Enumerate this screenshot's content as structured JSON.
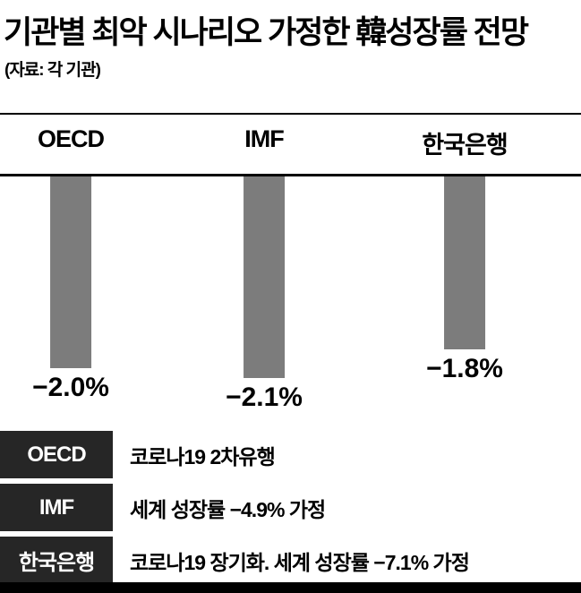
{
  "header": {
    "title": "기관별 최악 시나리오 가정한 韓성장률 전망",
    "source": "(자료: 각 기관)"
  },
  "chart_data": {
    "type": "bar",
    "title": "기관별 최악 시나리오 가정한 韓성장률 전망",
    "categories": [
      "OECD",
      "IMF",
      "한국은행"
    ],
    "values": [
      -2.0,
      -2.1,
      -1.8
    ],
    "value_labels": [
      "−2.0%",
      "−2.1%",
      "−1.8%"
    ],
    "unit": "%",
    "orientation": "vertical-negative",
    "baseline": 0,
    "ylim": [
      -2.5,
      0
    ],
    "bar_color": "#7c7c7c",
    "legend": "none",
    "grid": false
  },
  "table": {
    "rows": [
      {
        "label": "OECD",
        "desc": "코로나19 2차유행"
      },
      {
        "label": "IMF",
        "desc": "세계 성장률 −4.9% 가정"
      },
      {
        "label": "한국은행",
        "desc": "코로나19 장기화. 세계 성장률 −7.1% 가정"
      }
    ]
  },
  "colors": {
    "bar": "#7c7c7c",
    "label_cell_bg": "#262626",
    "bottom_bar": "#000000"
  }
}
